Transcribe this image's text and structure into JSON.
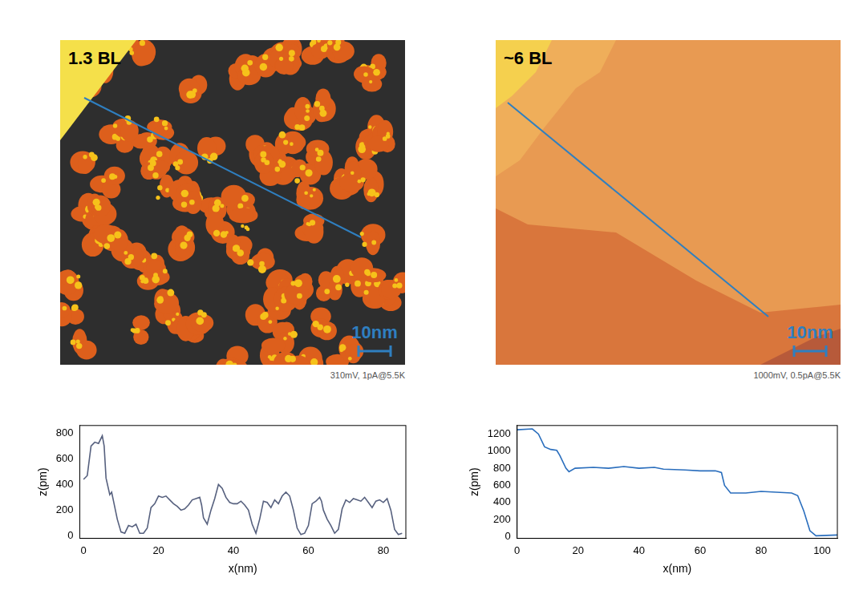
{
  "panels": [
    {
      "label": "1.3 BL",
      "scale_bar": "10nm",
      "caption": "310mV, 1pA@5.5K"
    },
    {
      "label": "~6 BL",
      "scale_bar": "10nm",
      "caption": "1000mV, 0.5pA@5.5K"
    }
  ],
  "chart_data": [
    {
      "type": "line",
      "x_label": "x(nm)",
      "y_label": "z(pm)",
      "color": "#56607e",
      "xlim": [
        -1,
        86
      ],
      "xticks": [
        0,
        20,
        40,
        60,
        80
      ],
      "ylim": [
        -20,
        860
      ],
      "yticks": [
        0,
        200,
        400,
        600,
        800
      ],
      "grid": false,
      "x": [
        0,
        1,
        2,
        3,
        4,
        5,
        5.5,
        6,
        7,
        7.5,
        8,
        9,
        10,
        11,
        12,
        13,
        14,
        15,
        16,
        17,
        18,
        19,
        20,
        21,
        22,
        23,
        24,
        25,
        26,
        27,
        28,
        29,
        30,
        31,
        31.5,
        32,
        33,
        34,
        35,
        36,
        37,
        38,
        39,
        40,
        41,
        42,
        43,
        44,
        45,
        46,
        47,
        48,
        49,
        50,
        51,
        52,
        53,
        54,
        55,
        56,
        57,
        58,
        59,
        60,
        61,
        62,
        63,
        63.5,
        64,
        65,
        66,
        67,
        68,
        69,
        70,
        71,
        72,
        73,
        74,
        75,
        76,
        77,
        78,
        79,
        80,
        81,
        82,
        83,
        84,
        85
      ],
      "values": [
        440,
        470,
        700,
        730,
        720,
        780,
        700,
        450,
        320,
        340,
        270,
        130,
        30,
        20,
        80,
        70,
        90,
        20,
        20,
        60,
        220,
        250,
        310,
        300,
        310,
        280,
        250,
        230,
        200,
        210,
        240,
        280,
        290,
        300,
        240,
        140,
        90,
        200,
        290,
        400,
        370,
        300,
        260,
        250,
        250,
        270,
        240,
        200,
        90,
        20,
        130,
        270,
        260,
        220,
        280,
        250,
        310,
        340,
        310,
        200,
        60,
        10,
        20,
        80,
        250,
        270,
        300,
        270,
        200,
        130,
        80,
        20,
        50,
        210,
        280,
        260,
        290,
        280,
        270,
        300,
        260,
        220,
        270,
        280,
        260,
        290,
        200,
        50,
        10,
        20
      ]
    },
    {
      "type": "line",
      "x_label": "x(nm)",
      "y_label": "z(pm)",
      "color": "#2a6ebd",
      "xlim": [
        0,
        105
      ],
      "xticks": [
        0,
        20,
        40,
        60,
        80,
        100
      ],
      "ylim": [
        -20,
        1300
      ],
      "yticks": [
        0,
        200,
        400,
        600,
        800,
        1000,
        1200
      ],
      "grid": false,
      "x": [
        0,
        5,
        7,
        9,
        11,
        13,
        14,
        16,
        17,
        19,
        25,
        30,
        35,
        40,
        45,
        48,
        55,
        60,
        65,
        67,
        68,
        70,
        75,
        80,
        85,
        90,
        92,
        94,
        96,
        98,
        105
      ],
      "values": [
        1250,
        1260,
        1200,
        1050,
        1020,
        1010,
        950,
        800,
        760,
        800,
        810,
        800,
        820,
        800,
        810,
        790,
        780,
        770,
        770,
        750,
        600,
        510,
        510,
        530,
        520,
        510,
        480,
        300,
        70,
        10,
        20
      ]
    }
  ]
}
